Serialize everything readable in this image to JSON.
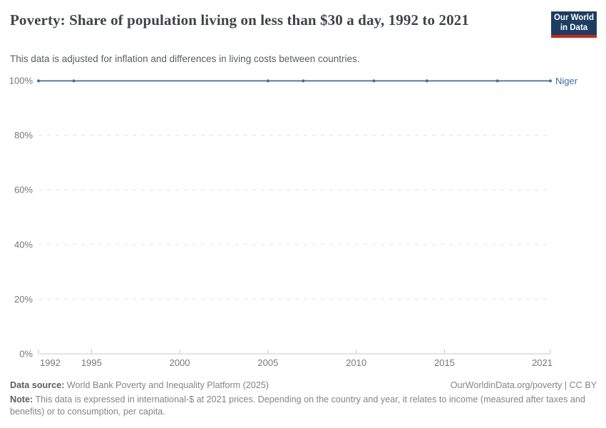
{
  "header": {
    "title": "Poverty: Share of population living on less than $30 a day, 1992 to 2021",
    "subtitle": "This data is adjusted for inflation and differences in living costs between countries.",
    "logo": {
      "line1": "Our World",
      "line2": "in Data",
      "bg_color": "#1d3d63",
      "accent_color": "#c5281c"
    }
  },
  "chart_data": {
    "type": "line",
    "title": "Poverty: Share of population living on less than $30 a day, 1992 to 2021",
    "xlabel": "",
    "ylabel": "",
    "xlim": [
      1992,
      2021
    ],
    "ylim": [
      0,
      100
    ],
    "grid": "horizontal-dashed",
    "legend_position": "end-of-line-label",
    "x_ticks": [
      {
        "value": 1992,
        "label": "1992"
      },
      {
        "value": 1995,
        "label": "1995"
      },
      {
        "value": 2000,
        "label": "2000"
      },
      {
        "value": 2005,
        "label": "2005"
      },
      {
        "value": 2010,
        "label": "2010"
      },
      {
        "value": 2015,
        "label": "2015"
      },
      {
        "value": 2021,
        "label": "2021"
      }
    ],
    "y_ticks": [
      {
        "value": 0,
        "label": "0%"
      },
      {
        "value": 20,
        "label": "20%"
      },
      {
        "value": 40,
        "label": "40%"
      },
      {
        "value": 60,
        "label": "60%"
      },
      {
        "value": 80,
        "label": "80%"
      },
      {
        "value": 100,
        "label": "100%"
      }
    ],
    "series": [
      {
        "name": "Niger",
        "color": "#4569a0",
        "points": [
          {
            "x": 1992,
            "y": 99.9
          },
          {
            "x": 1994,
            "y": 99.9
          },
          {
            "x": 2005,
            "y": 99.9
          },
          {
            "x": 2007,
            "y": 99.9
          },
          {
            "x": 2011,
            "y": 99.9
          },
          {
            "x": 2014,
            "y": 99.9
          },
          {
            "x": 2018,
            "y": 99.9
          },
          {
            "x": 2021,
            "y": 99.9
          }
        ]
      }
    ]
  },
  "footer": {
    "source_label": "Data source:",
    "source_text": " World Bank Poverty and Inequality Platform (2025)",
    "link_text": "OurWorldinData.org/poverty | CC BY",
    "note_label": "Note:",
    "note_text": " This data is expressed in international-$ at 2021 prices. Depending on the country and year, it relates to income (measured after taxes and benefits) or to consumption, per capita."
  }
}
